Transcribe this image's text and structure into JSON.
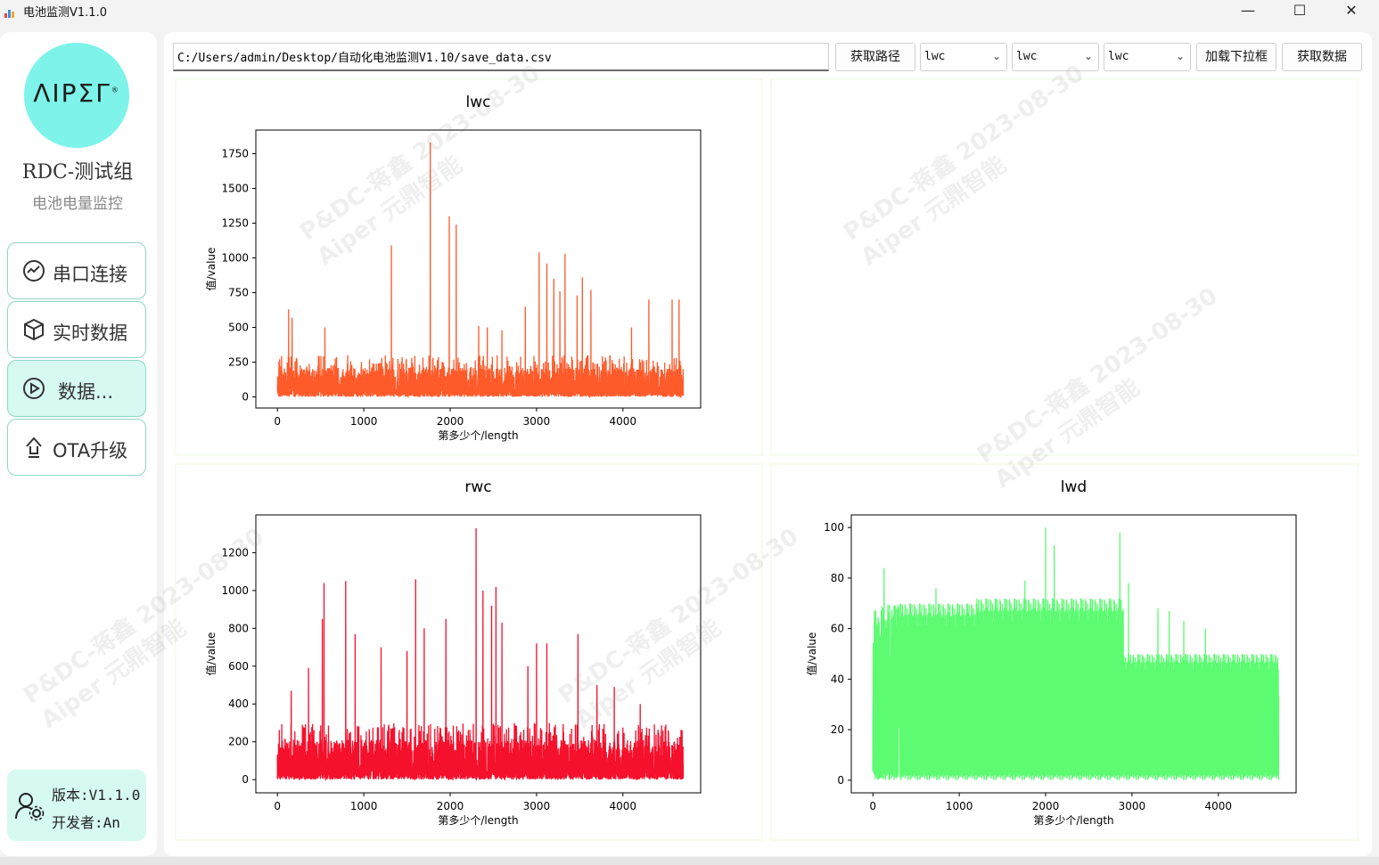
{
  "window": {
    "title": "电池监测V1.1.0",
    "minimize": "—",
    "maximize": "☐",
    "close": "✕"
  },
  "sidebar": {
    "logo_text": "ΛIPΣΓ",
    "logo_mark": "®",
    "team": "RDC-测试组",
    "subtitle": "电池电量监控",
    "nav": [
      {
        "label": "串口连接",
        "icon": "chart-circle-icon"
      },
      {
        "label": "实时数据",
        "icon": "cube-icon"
      },
      {
        "label": "数据...",
        "icon": "play-circle-icon"
      },
      {
        "label": "OTA升级",
        "icon": "upload-arrow-icon"
      }
    ],
    "version": "版本:V1.1.0",
    "developer": "开发者:An"
  },
  "toolbar": {
    "path_value": "C:/Users/admin/Desktop/自动化电池监测V1.10/save_data.csv",
    "get_path_label": "获取路径",
    "combo1": "lwc",
    "combo2": "lwc",
    "combo3": "lwc",
    "load_dropdown_label": "加载下拉框",
    "get_data_label": "获取数据"
  },
  "watermark": {
    "line1": "P&DC-蒋鑫 2023-08-30",
    "line2": "Aiper 元鼎智能"
  },
  "chart_data": [
    {
      "type": "line",
      "title": "lwc",
      "xlabel": "第多少个/length",
      "ylabel": "值/value",
      "color": "#ff5a2a",
      "xlim": [
        -250,
        4900
      ],
      "ylim": [
        -80,
        1920
      ],
      "xticks": [
        0,
        1000,
        2000,
        3000,
        4000
      ],
      "yticks": [
        0,
        250,
        500,
        750,
        1000,
        1250,
        1500,
        1750
      ],
      "n_points": 4700,
      "base_max": 300,
      "spikes": [
        [
          130,
          630
        ],
        [
          170,
          570
        ],
        [
          550,
          500
        ],
        [
          1320,
          1090
        ],
        [
          1770,
          1830
        ],
        [
          1990,
          1300
        ],
        [
          2070,
          1240
        ],
        [
          2330,
          510
        ],
        [
          2430,
          500
        ],
        [
          2600,
          480
        ],
        [
          2870,
          650
        ],
        [
          3030,
          1040
        ],
        [
          3120,
          960
        ],
        [
          3200,
          850
        ],
        [
          3270,
          760
        ],
        [
          3330,
          1030
        ],
        [
          3470,
          730
        ],
        [
          3530,
          860
        ],
        [
          3630,
          770
        ],
        [
          4100,
          500
        ],
        [
          4300,
          700
        ],
        [
          4570,
          700
        ],
        [
          4650,
          700
        ]
      ]
    },
    {
      "type": "line",
      "title": "rwc",
      "xlabel": "第多少个/length",
      "ylabel": "值/value",
      "color": "#f5102c",
      "xlim": [
        -250,
        4900
      ],
      "ylim": [
        -70,
        1400
      ],
      "xticks": [
        0,
        1000,
        2000,
        3000,
        4000
      ],
      "yticks": [
        0,
        200,
        400,
        600,
        800,
        1000,
        1200
      ],
      "n_points": 4700,
      "base_max": 300,
      "spikes": [
        [
          160,
          470
        ],
        [
          360,
          590
        ],
        [
          520,
          850
        ],
        [
          540,
          1040
        ],
        [
          790,
          1050
        ],
        [
          900,
          770
        ],
        [
          1200,
          700
        ],
        [
          1500,
          680
        ],
        [
          1600,
          1060
        ],
        [
          1700,
          800
        ],
        [
          1950,
          850
        ],
        [
          2300,
          1330
        ],
        [
          2380,
          1000
        ],
        [
          2480,
          920
        ],
        [
          2530,
          1020
        ],
        [
          2600,
          830
        ],
        [
          2900,
          600
        ],
        [
          3000,
          720
        ],
        [
          3120,
          720
        ],
        [
          3480,
          770
        ],
        [
          3700,
          500
        ],
        [
          3900,
          490
        ],
        [
          4200,
          400
        ]
      ]
    },
    {
      "type": "line",
      "title": "lwd",
      "xlabel": "第多少个/length",
      "ylabel": "值/value",
      "color": "#5cfb72",
      "xlim": [
        -250,
        4900
      ],
      "ylim": [
        -5,
        105
      ],
      "xticks": [
        0,
        1000,
        2000,
        3000,
        4000
      ],
      "yticks": [
        0,
        20,
        40,
        60,
        80,
        100
      ],
      "n_points": 4700,
      "band_segments": [
        [
          0,
          1200,
          70
        ],
        [
          1200,
          2900,
          72
        ],
        [
          2900,
          4700,
          50
        ]
      ],
      "spikes": [
        [
          130,
          84
        ],
        [
          730,
          76
        ],
        [
          1760,
          79
        ],
        [
          1830,
          70
        ],
        [
          2000,
          100
        ],
        [
          2100,
          93
        ],
        [
          2860,
          98
        ],
        [
          2960,
          78
        ],
        [
          3300,
          68
        ],
        [
          3430,
          67
        ],
        [
          3600,
          63
        ],
        [
          3850,
          60
        ]
      ]
    }
  ]
}
